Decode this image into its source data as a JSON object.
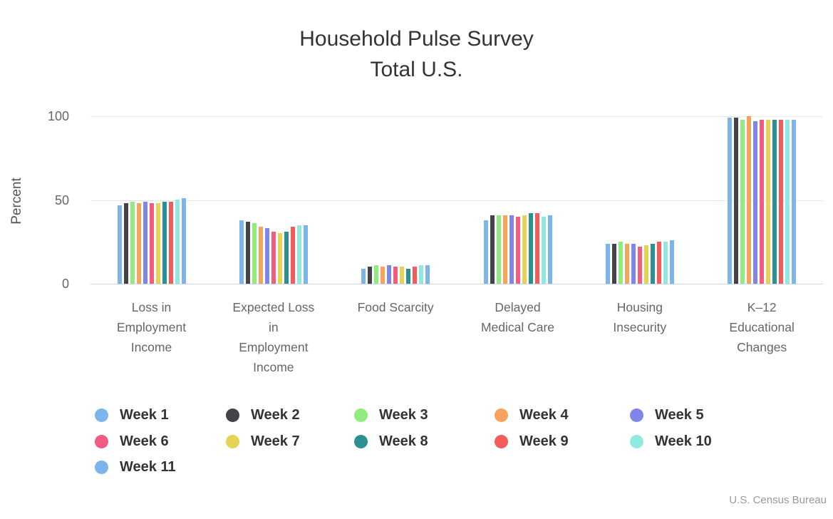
{
  "title": {
    "line1": "Household Pulse Survey",
    "line2": "Total U.S."
  },
  "credits_label": "U.S. Census Bureau",
  "chart_data": {
    "type": "bar",
    "title": "Household Pulse Survey Total U.S.",
    "xlabel": "",
    "ylabel": "Percent",
    "ylim": [
      0,
      100
    ],
    "yticks": [
      0,
      50,
      100
    ],
    "grid": true,
    "legend_position": "bottom-left",
    "categories": [
      "Loss in Employment Income",
      "Expected Loss in Employment Income",
      "Food Scarcity",
      "Delayed Medical Care",
      "Housing Insecurity",
      "K–12 Educational Changes"
    ],
    "category_lines": [
      [
        "Loss in",
        "Employment",
        "Income"
      ],
      [
        "Expected Loss",
        "in",
        "Employment",
        "Income"
      ],
      [
        "Food Scarcity"
      ],
      [
        "Delayed",
        "Medical Care"
      ],
      [
        "Housing",
        "Insecurity"
      ],
      [
        "K–12",
        "Educational",
        "Changes"
      ]
    ],
    "series": [
      {
        "name": "Week 1",
        "color": "#7cb5ec",
        "values": [
          47,
          38,
          9,
          38,
          24,
          99
        ]
      },
      {
        "name": "Week 2",
        "color": "#434348",
        "values": [
          48,
          37,
          10,
          41,
          24,
          99
        ]
      },
      {
        "name": "Week 3",
        "color": "#90ed7d",
        "values": [
          49,
          36,
          11,
          41,
          25,
          98
        ]
      },
      {
        "name": "Week 4",
        "color": "#f7a35c",
        "values": [
          48,
          34,
          10,
          41,
          24,
          100
        ]
      },
      {
        "name": "Week 5",
        "color": "#8085e9",
        "values": [
          49,
          33,
          11,
          41,
          24,
          97
        ]
      },
      {
        "name": "Week 6",
        "color": "#f15c80",
        "values": [
          48,
          31,
          10,
          40,
          22,
          98
        ]
      },
      {
        "name": "Week 7",
        "color": "#e4d354",
        "values": [
          48,
          30,
          10,
          41,
          23,
          98
        ]
      },
      {
        "name": "Week 8",
        "color": "#2b908f",
        "values": [
          49,
          31,
          9,
          42,
          24,
          98
        ]
      },
      {
        "name": "Week 9",
        "color": "#f45b5b",
        "values": [
          49,
          34,
          10,
          42,
          25,
          98
        ]
      },
      {
        "name": "Week 10",
        "color": "#91e8e1",
        "values": [
          50,
          35,
          11,
          40,
          25,
          98
        ]
      },
      {
        "name": "Week 11",
        "color": "#7cb5ec",
        "values": [
          51,
          35,
          11,
          41,
          26,
          98
        ]
      }
    ]
  },
  "colors": {
    "grid": "#e6e6e6",
    "axis_line": "#ccd6eb",
    "title_text": "#333333",
    "axis_text": "#666666",
    "legend_text": "#333333",
    "credits_text": "#999999"
  }
}
